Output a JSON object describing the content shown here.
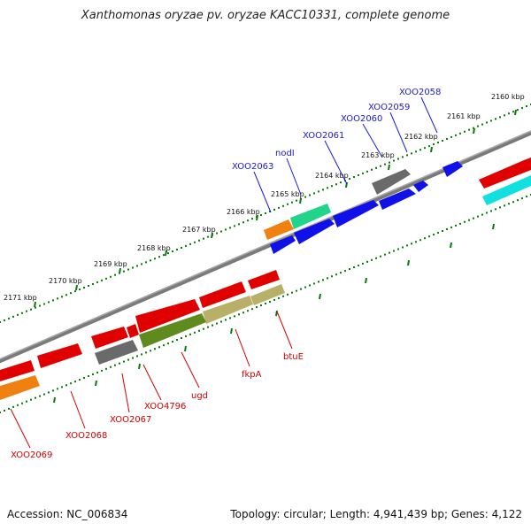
{
  "title": "Xanthomonas oryzae pv. oryzae KACC10331, complete genome",
  "footer": {
    "accession": "Accession: NC_006834",
    "summary": "Topology: circular; Length: 4,941,439 bp; Genes: 4,122"
  },
  "colors": {
    "backbone": "#808080",
    "tick": "#0a7a0a",
    "label_top": "#1a1ad6",
    "label_bottom": "#d40000",
    "leader_top": "#1a1ad6",
    "leader_bottom": "#d40000"
  },
  "ticks": [
    {
      "label": "2160 kbp"
    },
    {
      "label": "2161 kbp"
    },
    {
      "label": "2162 kbp"
    },
    {
      "label": "2163 kbp"
    },
    {
      "label": "2164 kbp"
    },
    {
      "label": "2165 kbp"
    },
    {
      "label": "2166 kbp"
    },
    {
      "label": "2167 kbp"
    },
    {
      "label": "2168 kbp"
    },
    {
      "label": "2169 kbp"
    },
    {
      "label": "2170 kbp"
    },
    {
      "label": "2171 kbp"
    }
  ],
  "gene_labels_top": [
    "XOO2058",
    "XOO2059",
    "XOO2060",
    "XOO2061",
    "nodI",
    "XOO2063"
  ],
  "gene_labels_bottom": [
    "btuE",
    "fkpA",
    "ugd",
    "XOO4796",
    "XOO2067",
    "XOO2068",
    "XOO2069"
  ]
}
